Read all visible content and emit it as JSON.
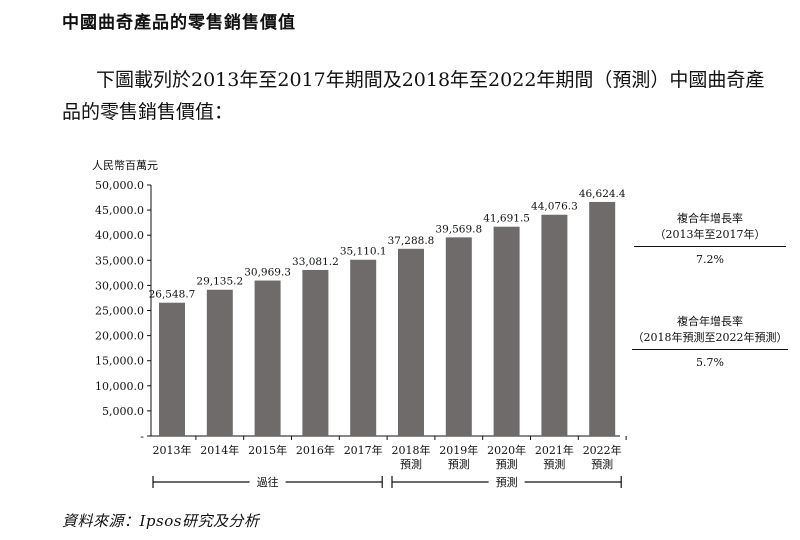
{
  "heading": "中國曲奇產品的零售銷售價值",
  "intro": {
    "line1": "下圖載列於2013年至2017年期間及2018年至2022年期間（預測）中國曲奇產",
    "line2": "品的零售銷售價值："
  },
  "source": "資料來源：Ipsos研究及分析",
  "cagr": [
    {
      "title": "複合年增長率",
      "period": "（2013年至2017年）",
      "value": "7.2%"
    },
    {
      "title": "複合年增長率",
      "period": "（2018年預測至2022年預測）",
      "value": "5.7%"
    }
  ],
  "chart_data": {
    "type": "bar",
    "ylabel": "人民幣百萬元",
    "ylim": [
      0,
      50000
    ],
    "yticks": [
      "-",
      "5,000.0",
      "10,000.0",
      "15,000.0",
      "20,000.0",
      "25,000.0",
      "30,000.0",
      "35,000.0",
      "40,000.0",
      "45,000.0",
      "50,000.0"
    ],
    "categories": [
      [
        "2013年"
      ],
      [
        "2014年"
      ],
      [
        "2015年"
      ],
      [
        "2016年"
      ],
      [
        "2017年"
      ],
      [
        "2018年",
        "預測"
      ],
      [
        "2019年",
        "預測"
      ],
      [
        "2020年",
        "預測"
      ],
      [
        "2021年",
        "預測"
      ],
      [
        "2022年",
        "預測"
      ]
    ],
    "values": [
      26548.7,
      29135.2,
      30969.3,
      33081.2,
      35110.1,
      37288.8,
      39569.8,
      41691.5,
      44076.3,
      46624.4
    ],
    "value_labels": [
      "26,548.7",
      "29,135.2",
      "30,969.3",
      "33,081.2",
      "35,110.1",
      "37,288.8",
      "39,569.8",
      "41,691.5",
      "44,076.3",
      "46,624.4"
    ],
    "bar_color": "#6e6b6a",
    "groups": [
      {
        "label": "過往",
        "from": 0,
        "to": 4
      },
      {
        "label": "預測",
        "from": 5,
        "to": 9
      }
    ]
  }
}
